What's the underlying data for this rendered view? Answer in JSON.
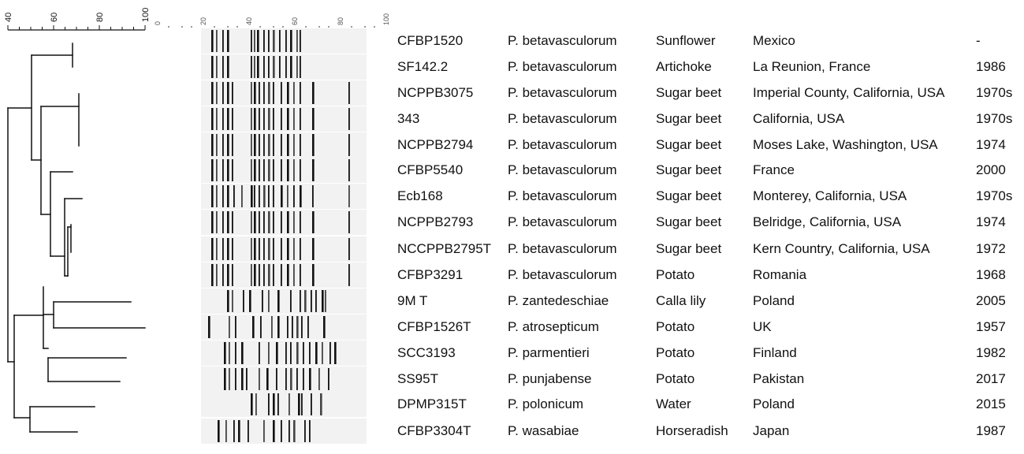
{
  "dendrogram_scale": {
    "ticks": [
      "40",
      "60",
      "80",
      "100"
    ]
  },
  "gel_scale": {
    "ticks": [
      "0",
      "20",
      "40",
      "60",
      "80",
      "100"
    ]
  },
  "isolates": [
    {
      "strain": "CFBP1520",
      "species": "P. betavasculorum",
      "host": "Sunflower",
      "origin": "Mexico",
      "year": "-"
    },
    {
      "strain": "SF142.2",
      "species": "P. betavasculorum",
      "host": "Artichoke",
      "origin": "La Reunion, France",
      "year": "1986"
    },
    {
      "strain": "NCPPB3075",
      "species": "P. betavasculorum",
      "host": "Sugar beet",
      "origin": "Imperial County, California, USA",
      "year": "1970s"
    },
    {
      "strain": "343",
      "species": "P. betavasculorum",
      "host": "Sugar beet",
      "origin": "California, USA",
      "year": "1970s"
    },
    {
      "strain": "NCPPB2794",
      "species": "P. betavasculorum",
      "host": "Sugar beet",
      "origin": "Moses Lake, Washington, USA",
      "year": "1974"
    },
    {
      "strain": "CFBP5540",
      "species": "P. betavasculorum",
      "host": "Sugar beet",
      "origin": "France",
      "year": "2000"
    },
    {
      "strain": "Ecb168",
      "species": "P. betavasculorum",
      "host": "Sugar beet",
      "origin": "Monterey, California, USA",
      "year": "1970s"
    },
    {
      "strain": "NCPPB2793",
      "species": "P. betavasculorum",
      "host": "Sugar beet",
      "origin": "Belridge, California, USA",
      "year": "1974"
    },
    {
      "strain": "NCCPPB2795T",
      "species": "P. betavasculorum",
      "host": "Sugar beet",
      "origin": "Kern Country, California, USA",
      "year": "1972"
    },
    {
      "strain": "CFBP3291",
      "species": "P. betavasculorum",
      "host": "Potato",
      "origin": "Romania",
      "year": "1968"
    },
    {
      "strain": "9M T",
      "species": "P. zantedeschiae",
      "host": "Calla lily",
      "origin": "Poland",
      "year": "2005"
    },
    {
      "strain": "CFBP1526T",
      "species": "P. atrosepticum",
      "host": "Potato",
      "origin": "UK",
      "year": "1957"
    },
    {
      "strain": "SCC3193",
      "species": "P. parmentieri",
      "host": "Potato",
      "origin": "Finland",
      "year": "1982"
    },
    {
      "strain": "SS95T",
      "species": "P. punjabense",
      "host": "Potato",
      "origin": "Pakistan",
      "year": "2017"
    },
    {
      "strain": "DPMP315T",
      "species": "P. polonicum",
      "host": "Water",
      "origin": "Poland",
      "year": "2015"
    },
    {
      "strain": "CFBP3304T",
      "species": "P. wasabiae",
      "host": "Horseradish",
      "origin": "Japan",
      "year": "1987"
    }
  ]
}
